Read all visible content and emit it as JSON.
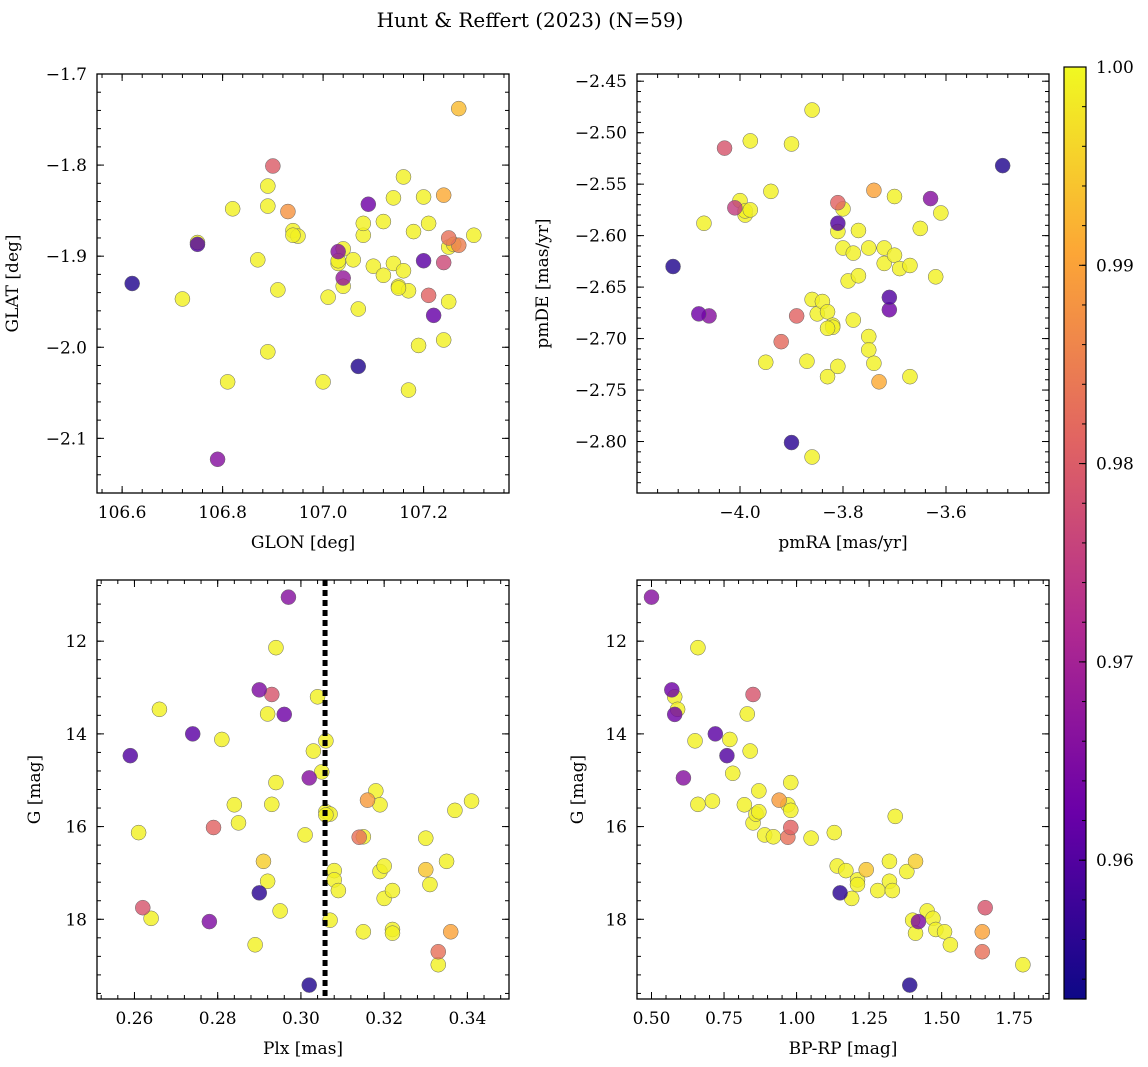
{
  "title": "Hunt & Reffert (2023) (N=59)",
  "colorbar": {
    "ticks": [
      "0.96",
      "0.97",
      "0.98",
      "0.99",
      "1.00"
    ],
    "range": [
      0.953,
      1.0
    ],
    "colormap": [
      "#0d0887",
      "#6a00a8",
      "#b12a90",
      "#e16462",
      "#fca636",
      "#f0f921"
    ]
  },
  "chart_data": [
    {
      "id": "glon-glat",
      "type": "scatter",
      "xlabel": "GLON [deg]",
      "ylabel": "GLAT [deg]",
      "xlim": [
        106.55,
        107.37
      ],
      "ylim": [
        -2.16,
        -1.7
      ],
      "y_inverted": false,
      "xticks": [
        106.6,
        106.8,
        107.0,
        107.2
      ],
      "xtick_labels": [
        "106.6",
        "106.8",
        "107.0",
        "107.2"
      ],
      "yticks": [
        -1.7,
        -1.8,
        -1.9,
        -2.0,
        -2.1
      ],
      "ytick_labels": [
        "−1.7",
        "−1.8",
        "−1.9",
        "−2.0",
        "−2.1"
      ],
      "points": [
        [
          106.62,
          -1.93,
          0.955
        ],
        [
          106.75,
          -1.887,
          0.96
        ],
        [
          106.75,
          -1.885,
          0.999
        ],
        [
          106.72,
          -1.947,
          0.999
        ],
        [
          106.79,
          -2.123,
          0.966
        ],
        [
          106.81,
          -2.038,
          0.999
        ],
        [
          106.82,
          -1.848,
          0.999
        ],
        [
          106.87,
          -1.904,
          0.999
        ],
        [
          106.89,
          -1.823,
          0.999
        ],
        [
          106.89,
          -1.845,
          0.999
        ],
        [
          106.89,
          -2.005,
          0.999
        ],
        [
          106.9,
          -1.801,
          0.98
        ],
        [
          106.91,
          -1.937,
          0.999
        ],
        [
          106.93,
          -1.851,
          0.988
        ],
        [
          106.94,
          -1.872,
          0.999
        ],
        [
          106.95,
          -1.878,
          0.999
        ],
        [
          107.0,
          -2.038,
          0.999
        ],
        [
          107.01,
          -1.945,
          0.999
        ],
        [
          107.03,
          -1.895,
          0.966
        ],
        [
          107.03,
          -1.908,
          0.999
        ],
        [
          107.04,
          -1.892,
          0.999
        ],
        [
          107.04,
          -1.924,
          0.968
        ],
        [
          107.04,
          -1.933,
          0.999
        ],
        [
          107.06,
          -1.904,
          0.999
        ],
        [
          107.07,
          -2.021,
          0.955
        ],
        [
          107.07,
          -1.958,
          0.999
        ],
        [
          107.08,
          -1.877,
          0.999
        ],
        [
          107.08,
          -1.864,
          0.999
        ],
        [
          107.09,
          -1.843,
          0.963
        ],
        [
          107.1,
          -1.911,
          0.999
        ],
        [
          107.12,
          -1.862,
          0.999
        ],
        [
          107.12,
          -1.921,
          0.999
        ],
        [
          107.14,
          -1.908,
          0.999
        ],
        [
          107.14,
          -1.836,
          0.999
        ],
        [
          107.15,
          -1.933,
          0.999
        ],
        [
          107.16,
          -1.813,
          0.999
        ],
        [
          107.16,
          -1.916,
          0.999
        ],
        [
          107.17,
          -1.938,
          0.999
        ],
        [
          107.17,
          -2.047,
          0.999
        ],
        [
          107.18,
          -1.873,
          0.999
        ],
        [
          107.19,
          -1.998,
          0.999
        ],
        [
          107.2,
          -1.835,
          0.999
        ],
        [
          107.2,
          -1.905,
          0.961
        ],
        [
          107.21,
          -1.864,
          0.999
        ],
        [
          107.21,
          -1.943,
          0.981
        ],
        [
          107.22,
          -1.965,
          0.962
        ],
        [
          107.24,
          -1.833,
          0.991
        ],
        [
          107.24,
          -1.907,
          0.977
        ],
        [
          107.24,
          -1.992,
          0.999
        ],
        [
          107.25,
          -1.95,
          0.999
        ],
        [
          107.25,
          -1.88,
          0.983
        ],
        [
          107.26,
          -1.887,
          0.996
        ],
        [
          107.27,
          -1.888,
          0.985
        ],
        [
          107.27,
          -1.738,
          0.993
        ],
        [
          107.3,
          -1.877,
          0.999
        ],
        [
          107.25,
          -1.89,
          0.999
        ],
        [
          106.94,
          -1.877,
          0.999
        ],
        [
          107.15,
          -1.935,
          0.999
        ],
        [
          107.03,
          -1.905,
          0.999
        ]
      ]
    },
    {
      "id": "pmra-pmde",
      "type": "scatter",
      "xlabel": "pmRA [mas/yr]",
      "ylabel": "pmDE [mas/yr]",
      "xlim": [
        -4.2,
        -3.4
      ],
      "ylim": [
        -2.85,
        -2.443
      ],
      "y_inverted": false,
      "xticks": [
        -4.0,
        -3.8,
        -3.6
      ],
      "xtick_labels": [
        "−4.0",
        "−3.8",
        "−3.6"
      ],
      "yticks": [
        -2.45,
        -2.5,
        -2.55,
        -2.6,
        -2.65,
        -2.7,
        -2.75,
        -2.8
      ],
      "ytick_labels": [
        "−2.45",
        "−2.50",
        "−2.55",
        "−2.60",
        "−2.65",
        "−2.70",
        "−2.75",
        "−2.80"
      ],
      "points": [
        [
          -4.13,
          -2.63,
          0.955
        ],
        [
          -4.08,
          -2.676,
          0.963
        ],
        [
          -4.07,
          -2.588,
          0.999
        ],
        [
          -4.06,
          -2.678,
          0.966
        ],
        [
          -4.03,
          -2.515,
          0.979
        ],
        [
          -4.01,
          -2.573,
          0.975
        ],
        [
          -4.0,
          -2.566,
          0.999
        ],
        [
          -3.99,
          -2.58,
          0.999
        ],
        [
          -3.99,
          -2.576,
          0.999
        ],
        [
          -3.98,
          -2.508,
          0.999
        ],
        [
          -3.98,
          -2.575,
          0.999
        ],
        [
          -3.95,
          -2.723,
          0.999
        ],
        [
          -3.94,
          -2.557,
          0.999
        ],
        [
          -3.92,
          -2.703,
          0.982
        ],
        [
          -3.9,
          -2.801,
          0.956
        ],
        [
          -3.9,
          -2.511,
          0.999
        ],
        [
          -3.89,
          -2.678,
          0.981
        ],
        [
          -3.87,
          -2.722,
          0.999
        ],
        [
          -3.86,
          -2.662,
          0.999
        ],
        [
          -3.86,
          -2.815,
          0.999
        ],
        [
          -3.86,
          -2.478,
          0.999
        ],
        [
          -3.85,
          -2.676,
          0.999
        ],
        [
          -3.84,
          -2.664,
          0.999
        ],
        [
          -3.83,
          -2.737,
          0.999
        ],
        [
          -3.83,
          -2.674,
          0.999
        ],
        [
          -3.82,
          -2.687,
          0.999
        ],
        [
          -3.82,
          -2.689,
          0.999
        ],
        [
          -3.81,
          -2.727,
          0.999
        ],
        [
          -3.81,
          -2.568,
          0.981
        ],
        [
          -3.81,
          -2.588,
          0.96
        ],
        [
          -3.81,
          -2.596,
          0.999
        ],
        [
          -3.8,
          -2.574,
          0.999
        ],
        [
          -3.8,
          -2.612,
          0.999
        ],
        [
          -3.79,
          -2.644,
          0.999
        ],
        [
          -3.78,
          -2.682,
          0.999
        ],
        [
          -3.77,
          -2.595,
          0.999
        ],
        [
          -3.77,
          -2.639,
          0.999
        ],
        [
          -3.75,
          -2.612,
          0.999
        ],
        [
          -3.75,
          -2.698,
          0.999
        ],
        [
          -3.75,
          -2.711,
          0.999
        ],
        [
          -3.74,
          -2.724,
          0.999
        ],
        [
          -3.74,
          -2.556,
          0.99
        ],
        [
          -3.73,
          -2.742,
          0.991
        ],
        [
          -3.72,
          -2.612,
          0.999
        ],
        [
          -3.72,
          -2.627,
          0.999
        ],
        [
          -3.71,
          -2.66,
          0.96
        ],
        [
          -3.71,
          -2.672,
          0.963
        ],
        [
          -3.7,
          -2.562,
          0.999
        ],
        [
          -3.7,
          -2.619,
          0.999
        ],
        [
          -3.69,
          -2.632,
          0.999
        ],
        [
          -3.67,
          -2.629,
          0.999
        ],
        [
          -3.67,
          -2.737,
          0.999
        ],
        [
          -3.65,
          -2.593,
          0.999
        ],
        [
          -3.63,
          -2.564,
          0.966
        ],
        [
          -3.62,
          -2.64,
          0.999
        ],
        [
          -3.61,
          -2.578,
          0.999
        ],
        [
          -3.49,
          -2.532,
          0.955
        ],
        [
          -3.83,
          -2.69,
          0.999
        ],
        [
          -3.78,
          -2.617,
          0.999
        ]
      ]
    },
    {
      "id": "plx-g",
      "type": "scatter",
      "xlabel": "Plx [mas]",
      "ylabel": "G [mag]",
      "xlim": [
        0.251,
        0.35
      ],
      "ylim": [
        10.68,
        19.72
      ],
      "y_inverted": true,
      "vline": 0.3058,
      "xticks": [
        0.26,
        0.28,
        0.3,
        0.32,
        0.34
      ],
      "xtick_labels": [
        "0.26",
        "0.28",
        "0.30",
        "0.32",
        "0.34"
      ],
      "yticks": [
        12,
        14,
        16,
        18
      ],
      "ytick_labels": [
        "12",
        "14",
        "16",
        "18"
      ],
      "points": [
        [
          0.259,
          14.47,
          0.96
        ],
        [
          0.261,
          16.13,
          0.999
        ],
        [
          0.262,
          17.75,
          0.979
        ],
        [
          0.264,
          17.98,
          0.999
        ],
        [
          0.266,
          13.47,
          0.999
        ],
        [
          0.274,
          14.0,
          0.961
        ],
        [
          0.278,
          18.05,
          0.965
        ],
        [
          0.279,
          16.02,
          0.981
        ],
        [
          0.281,
          14.12,
          0.999
        ],
        [
          0.284,
          15.53,
          0.999
        ],
        [
          0.285,
          15.92,
          0.999
        ],
        [
          0.289,
          18.55,
          0.999
        ],
        [
          0.29,
          13.05,
          0.965
        ],
        [
          0.29,
          17.43,
          0.956
        ],
        [
          0.291,
          16.75,
          0.995
        ],
        [
          0.292,
          13.57,
          0.999
        ],
        [
          0.292,
          17.18,
          0.999
        ],
        [
          0.293,
          15.52,
          0.999
        ],
        [
          0.293,
          13.15,
          0.979
        ],
        [
          0.294,
          12.14,
          0.999
        ],
        [
          0.294,
          15.05,
          0.999
        ],
        [
          0.295,
          17.82,
          0.999
        ],
        [
          0.296,
          13.58,
          0.963
        ],
        [
          0.297,
          11.05,
          0.966
        ],
        [
          0.301,
          16.18,
          0.999
        ],
        [
          0.302,
          19.42,
          0.955
        ],
        [
          0.302,
          14.95,
          0.966
        ],
        [
          0.303,
          14.37,
          0.999
        ],
        [
          0.304,
          13.2,
          0.999
        ],
        [
          0.305,
          14.82,
          0.999
        ],
        [
          0.306,
          14.15,
          0.999
        ],
        [
          0.306,
          15.68,
          0.999
        ],
        [
          0.307,
          15.73,
          0.999
        ],
        [
          0.307,
          18.02,
          0.999
        ],
        [
          0.308,
          16.95,
          0.999
        ],
        [
          0.308,
          17.15,
          0.999
        ],
        [
          0.309,
          17.38,
          0.999
        ],
        [
          0.314,
          16.23,
          0.983
        ],
        [
          0.315,
          16.22,
          0.999
        ],
        [
          0.315,
          18.27,
          0.999
        ],
        [
          0.316,
          15.43,
          0.989
        ],
        [
          0.318,
          15.23,
          0.999
        ],
        [
          0.319,
          16.97,
          0.999
        ],
        [
          0.319,
          15.53,
          0.999
        ],
        [
          0.32,
          16.85,
          0.999
        ],
        [
          0.32,
          17.55,
          0.999
        ],
        [
          0.322,
          18.22,
          0.999
        ],
        [
          0.322,
          18.3,
          0.999
        ],
        [
          0.322,
          17.38,
          0.999
        ],
        [
          0.33,
          16.25,
          0.999
        ],
        [
          0.33,
          16.93,
          0.994
        ],
        [
          0.331,
          17.25,
          0.999
        ],
        [
          0.333,
          18.7,
          0.983
        ],
        [
          0.333,
          18.98,
          0.999
        ],
        [
          0.335,
          16.75,
          0.999
        ],
        [
          0.336,
          18.27,
          0.99
        ],
        [
          0.337,
          15.65,
          0.999
        ],
        [
          0.341,
          15.45,
          0.999
        ],
        [
          0.306,
          15.75,
          0.999
        ]
      ]
    },
    {
      "id": "bprp-g",
      "type": "scatter",
      "xlabel": "BP-RP [mag]",
      "ylabel": "G [mag]",
      "xlim": [
        0.45,
        1.87
      ],
      "ylim": [
        10.68,
        19.72
      ],
      "y_inverted": true,
      "xticks": [
        0.5,
        0.75,
        1.0,
        1.25,
        1.5,
        1.75
      ],
      "xtick_labels": [
        "0.50",
        "0.75",
        "1.00",
        "1.25",
        "1.50",
        "1.75"
      ],
      "yticks": [
        12,
        14,
        16,
        18
      ],
      "ytick_labels": [
        "12",
        "14",
        "16",
        "18"
      ],
      "points": [
        [
          0.5,
          11.05,
          0.966
        ],
        [
          0.57,
          13.05,
          0.963
        ],
        [
          0.58,
          13.58,
          0.963
        ],
        [
          0.58,
          13.2,
          0.999
        ],
        [
          0.59,
          13.47,
          0.999
        ],
        [
          0.61,
          14.95,
          0.966
        ],
        [
          0.65,
          14.15,
          0.999
        ],
        [
          0.66,
          15.52,
          0.999
        ],
        [
          0.66,
          12.14,
          0.999
        ],
        [
          0.71,
          15.45,
          0.999
        ],
        [
          0.72,
          14.0,
          0.961
        ],
        [
          0.76,
          14.47,
          0.96
        ],
        [
          0.77,
          14.12,
          0.999
        ],
        [
          0.78,
          14.85,
          0.999
        ],
        [
          0.82,
          15.53,
          0.999
        ],
        [
          0.83,
          13.57,
          0.999
        ],
        [
          0.84,
          14.37,
          0.999
        ],
        [
          0.85,
          13.15,
          0.979
        ],
        [
          0.85,
          15.92,
          0.999
        ],
        [
          0.86,
          15.73,
          0.999
        ],
        [
          0.87,
          15.68,
          0.999
        ],
        [
          0.87,
          15.23,
          0.999
        ],
        [
          0.89,
          16.18,
          0.999
        ],
        [
          0.92,
          16.22,
          0.999
        ],
        [
          0.94,
          15.43,
          0.989
        ],
        [
          0.97,
          15.53,
          0.999
        ],
        [
          0.97,
          16.23,
          0.983
        ],
        [
          0.98,
          16.02,
          0.981
        ],
        [
          0.98,
          15.65,
          0.999
        ],
        [
          0.98,
          15.05,
          0.999
        ],
        [
          1.05,
          16.25,
          0.999
        ],
        [
          1.13,
          16.13,
          0.999
        ],
        [
          1.14,
          16.85,
          0.999
        ],
        [
          1.15,
          17.43,
          0.956
        ],
        [
          1.17,
          16.95,
          0.999
        ],
        [
          1.19,
          17.55,
          0.999
        ],
        [
          1.21,
          17.15,
          0.999
        ],
        [
          1.21,
          17.25,
          0.999
        ],
        [
          1.24,
          16.93,
          0.994
        ],
        [
          1.28,
          17.38,
          0.999
        ],
        [
          1.32,
          16.75,
          0.999
        ],
        [
          1.32,
          17.18,
          0.999
        ],
        [
          1.33,
          17.38,
          0.999
        ],
        [
          1.34,
          15.78,
          0.999
        ],
        [
          1.38,
          16.97,
          0.999
        ],
        [
          1.4,
          18.02,
          0.999
        ],
        [
          1.41,
          18.3,
          0.999
        ],
        [
          1.41,
          16.75,
          0.995
        ],
        [
          1.42,
          18.05,
          0.965
        ],
        [
          1.39,
          19.42,
          0.955
        ],
        [
          1.45,
          17.82,
          0.999
        ],
        [
          1.47,
          17.98,
          0.999
        ],
        [
          1.48,
          18.22,
          0.999
        ],
        [
          1.51,
          18.27,
          0.999
        ],
        [
          1.53,
          18.55,
          0.999
        ],
        [
          1.64,
          18.27,
          0.99
        ],
        [
          1.64,
          18.7,
          0.983
        ],
        [
          1.65,
          17.75,
          0.979
        ],
        [
          1.78,
          18.98,
          0.999
        ]
      ]
    }
  ]
}
